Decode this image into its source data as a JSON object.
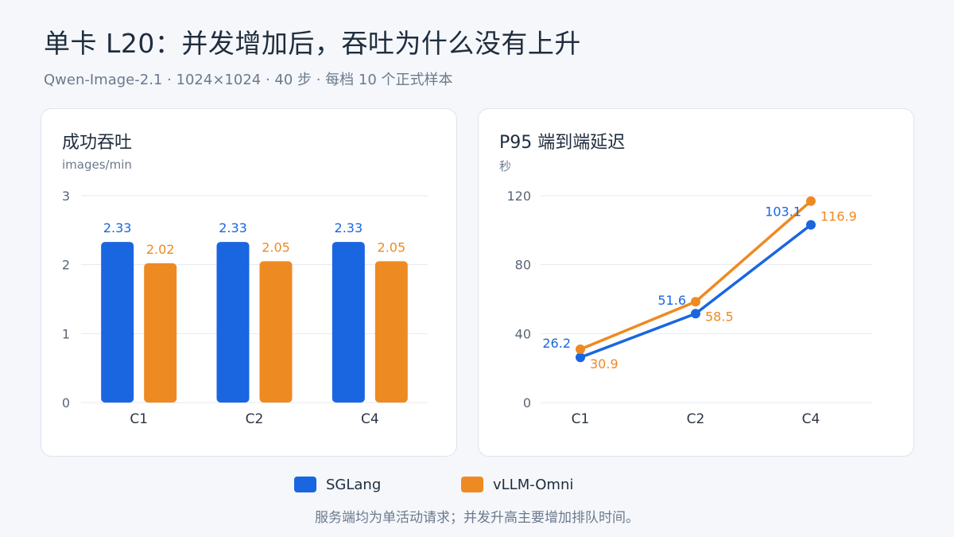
{
  "title": "单卡 L20：并发增加后，吞吐为什么没有上升",
  "subtitle": "Qwen-Image-2.1 · 1024×1024 · 40 步 · 每档 10 个正式样本",
  "colors": {
    "sglang": "#1a66e0",
    "vllm": "#ee8a22",
    "grid": "#e6e9ef",
    "axis_text": "#5a6676"
  },
  "legend": [
    {
      "name": "SGLang",
      "color": "#1a66e0"
    },
    {
      "name": "vLLM-Omni",
      "color": "#ee8a22"
    }
  ],
  "footnote": "服务端均为单活动请求；并发升高主要增加排队时间。",
  "chart_data": [
    {
      "type": "bar",
      "title": "成功吞吐",
      "ylabel": "images/min",
      "categories": [
        "C1",
        "C2",
        "C4"
      ],
      "ylim": [
        0,
        3
      ],
      "yticks": [
        0,
        1,
        2,
        3
      ],
      "series": [
        {
          "name": "SGLang",
          "values": [
            2.33,
            2.33,
            2.33
          ],
          "labels": [
            "2.33",
            "2.33",
            "2.33"
          ]
        },
        {
          "name": "vLLM-Omni",
          "values": [
            2.02,
            2.05,
            2.05
          ],
          "labels": [
            "2.02",
            "2.05",
            "2.05"
          ]
        }
      ],
      "grid": true
    },
    {
      "type": "line",
      "title": "P95 端到端延迟",
      "ylabel": "秒",
      "categories": [
        "C1",
        "C2",
        "C4"
      ],
      "ylim": [
        0,
        120
      ],
      "yticks": [
        0,
        40,
        80,
        120
      ],
      "series": [
        {
          "name": "SGLang",
          "values": [
            26.2,
            51.6,
            103.1
          ],
          "labels": [
            "26.2",
            "51.6",
            "103.1"
          ]
        },
        {
          "name": "vLLM-Omni",
          "values": [
            30.9,
            58.5,
            116.9
          ],
          "labels": [
            "30.9",
            "58.5",
            "116.9"
          ]
        }
      ],
      "grid": true
    }
  ]
}
